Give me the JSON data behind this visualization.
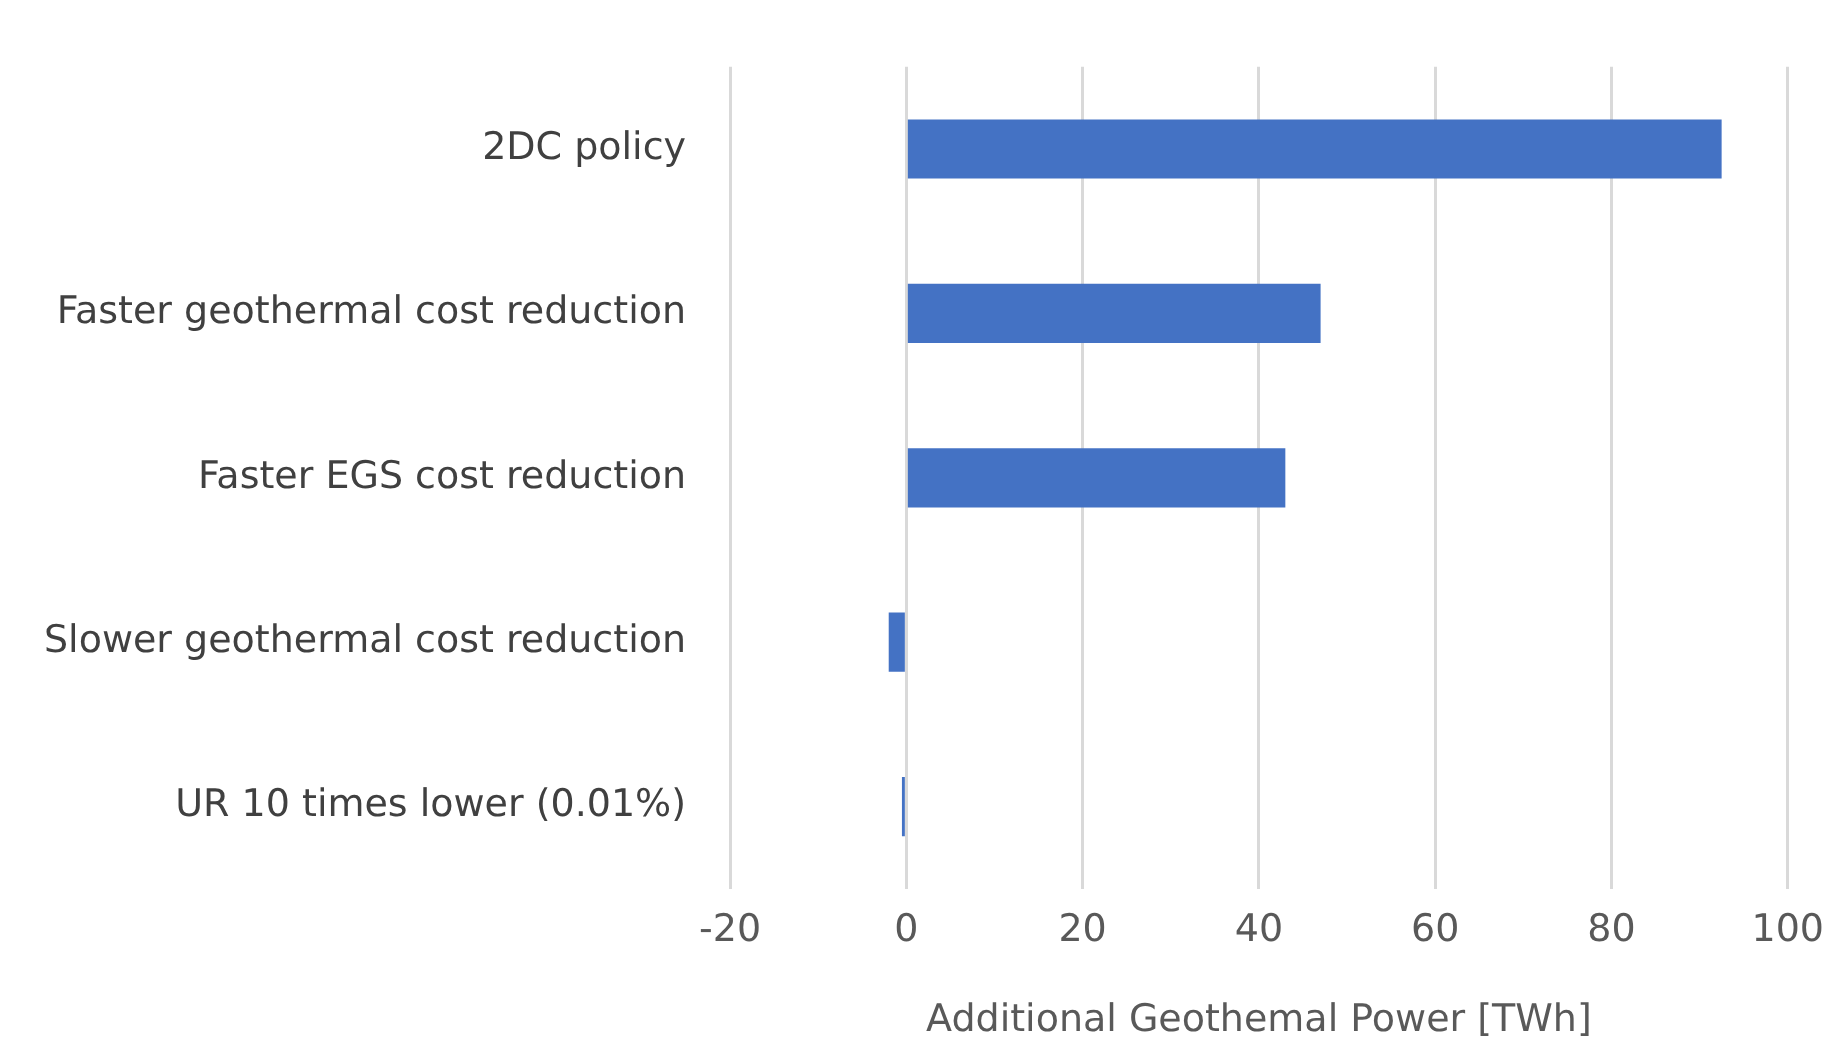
{
  "chart_data": {
    "type": "bar",
    "orientation": "horizontal",
    "xlabel": "Additional Geothemal Power [TWh]",
    "categories": [
      "2DC policy",
      "Faster geothermal cost reduction",
      "Faster EGS cost reduction",
      "Slower geothermal cost reduction",
      "UR 10 times lower (0.01%)"
    ],
    "values": [
      92.5,
      47,
      43,
      -2,
      -0.5
    ],
    "color": "#4472c4",
    "xlim": [
      -20,
      100
    ],
    "xticks": [
      -20,
      0,
      20,
      40,
      60,
      80,
      100
    ],
    "grid": "x",
    "legend": false
  }
}
